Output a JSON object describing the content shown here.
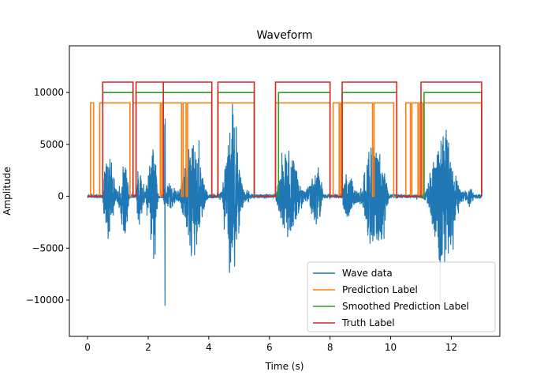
{
  "chart_data": {
    "type": "line",
    "title": "Waveform",
    "xlabel": "Time (s)",
    "ylabel": "Amplitude",
    "xlim": [
      -0.6,
      13.6
    ],
    "ylim": [
      -13500,
      14500
    ],
    "x_ticks": [
      0,
      2,
      4,
      6,
      8,
      10,
      12
    ],
    "x_tick_labels": [
      "0",
      "2",
      "4",
      "6",
      "8",
      "10",
      "12"
    ],
    "y_ticks": [
      -10000,
      -5000,
      0,
      5000,
      10000
    ],
    "y_tick_labels": [
      "−10000",
      "−5000",
      "0",
      "5000",
      "10000"
    ],
    "legend": {
      "placement": "lower-right",
      "entries": [
        "Wave data",
        "Prediction Label",
        "Smoothed Prediction Label",
        "Truth Label"
      ]
    },
    "series": [
      {
        "name": "Wave data",
        "color": "#1f77b4",
        "kind": "waveform",
        "x_range": [
          0,
          13
        ],
        "active_segments": [
          {
            "start": 0.5,
            "end": 1.5,
            "amp": 6500
          },
          {
            "start": 1.6,
            "end": 2.45,
            "amp": 6500
          },
          {
            "start": 2.5,
            "end": 2.6,
            "amp": 13000
          },
          {
            "start": 2.6,
            "end": 4.2,
            "amp": 6500
          },
          {
            "start": 4.3,
            "end": 5.5,
            "amp": 9000
          },
          {
            "start": 6.2,
            "end": 8.0,
            "amp": 6000
          },
          {
            "start": 8.4,
            "end": 10.2,
            "amp": 7000
          },
          {
            "start": 11.0,
            "end": 13.0,
            "amp": 7000
          }
        ],
        "noise_amp": 200
      },
      {
        "name": "Prediction Label",
        "color": "#ff7f0e",
        "high": 9000,
        "low": 0,
        "on_intervals": [
          [
            0.1,
            0.2
          ],
          [
            0.4,
            1.4
          ],
          [
            1.5,
            2.4
          ],
          [
            2.45,
            3.1
          ],
          [
            3.15,
            3.25
          ],
          [
            3.3,
            4.1
          ],
          [
            4.3,
            5.5
          ],
          [
            6.2,
            8.0
          ],
          [
            8.1,
            8.3
          ],
          [
            8.35,
            9.4
          ],
          [
            9.45,
            10.1
          ],
          [
            10.5,
            10.65
          ],
          [
            10.7,
            10.9
          ],
          [
            10.95,
            11.05
          ],
          [
            11.1,
            13.0
          ]
        ]
      },
      {
        "name": "Smoothed Prediction Label",
        "color": "#2ca02c",
        "high": 10000,
        "low": 0,
        "on_intervals": [
          [
            0.5,
            1.5
          ],
          [
            1.6,
            2.5
          ],
          [
            2.5,
            4.1
          ],
          [
            4.3,
            5.5
          ],
          [
            6.3,
            8.0
          ],
          [
            8.4,
            10.2
          ],
          [
            11.1,
            13.0
          ]
        ]
      },
      {
        "name": "Truth Label",
        "color": "#d62728",
        "high": 11000,
        "low": 0,
        "on_intervals": [
          [
            0.5,
            1.5
          ],
          [
            1.6,
            2.5
          ],
          [
            2.5,
            4.1
          ],
          [
            4.3,
            5.5
          ],
          [
            6.2,
            8.0
          ],
          [
            8.4,
            10.2
          ],
          [
            11.0,
            13.0
          ]
        ]
      }
    ]
  }
}
